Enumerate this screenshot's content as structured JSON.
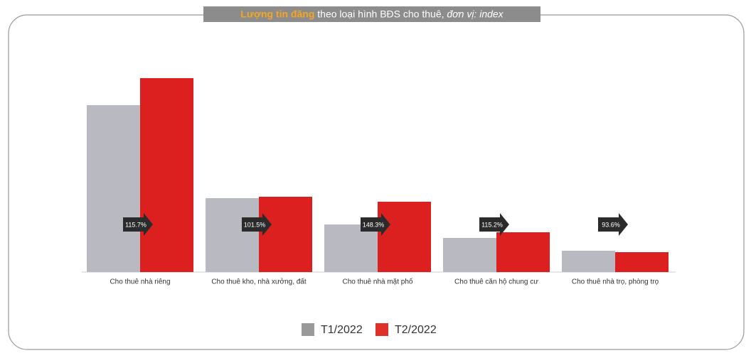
{
  "chart_data": {
    "type": "bar",
    "title_highlight": "Lượng tin đăng",
    "title": "theo loại hình BĐS cho thuê,",
    "title_unit": "đơn vị: index",
    "categories": [
      "Cho thuê nhà riêng",
      "Cho thuê kho, nhà xưởng, đất",
      "Cho thuê nhà mặt phố",
      "Cho thuê căn hộ chung cư",
      "Cho thuê nhà trọ, phòng trọ"
    ],
    "series": [
      {
        "name": "T1/2022",
        "color": "#b9b9c1",
        "values": [
          235,
          104,
          67,
          48,
          30
        ]
      },
      {
        "name": "T2/2022",
        "color": "#dc2020",
        "values": [
          273,
          106,
          99,
          56,
          28
        ]
      }
    ],
    "annotations": [
      "115.7%",
      "101.5%",
      "148.3%",
      "115.2%",
      "93.6%"
    ],
    "ylim": [
      0,
      300
    ],
    "grid": false
  }
}
